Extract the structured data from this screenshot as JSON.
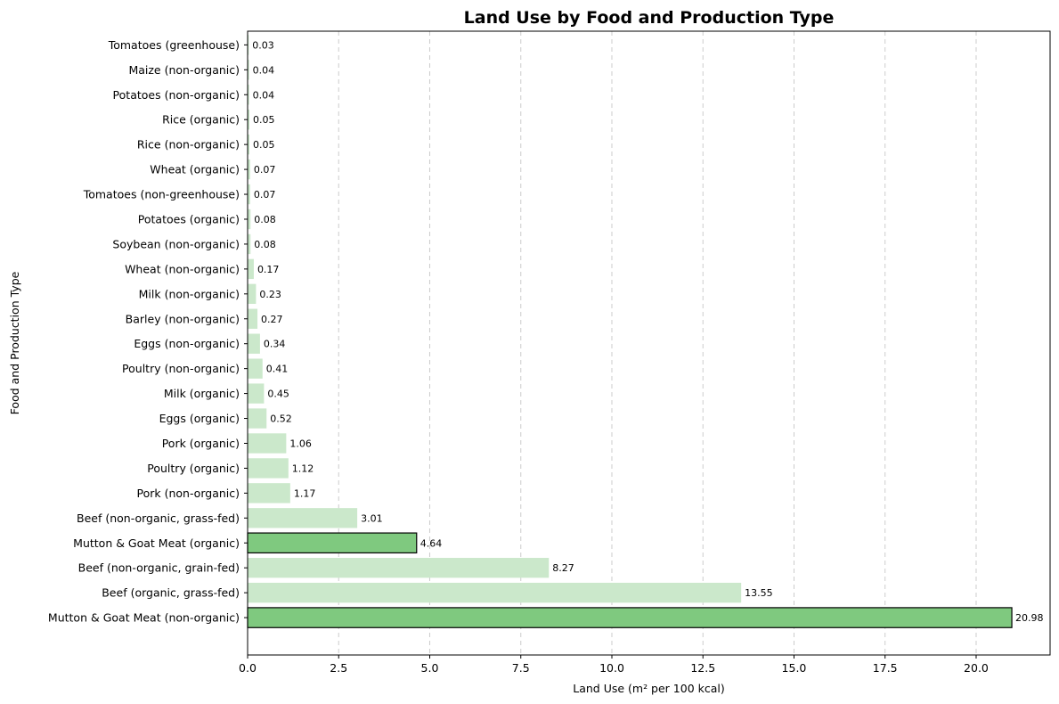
{
  "chart_data": {
    "type": "bar",
    "orientation": "horizontal",
    "title": "Land Use by Food and Production Type",
    "xlabel": "Land Use (m² per 100 kcal)",
    "ylabel": "Food and Production Type",
    "xlim": [
      0,
      22.03
    ],
    "xticks": [
      0.0,
      2.5,
      5.0,
      7.5,
      10.0,
      12.5,
      15.0,
      17.5,
      20.0
    ],
    "xtick_labels": [
      "0.0",
      "2.5",
      "5.0",
      "7.5",
      "10.0",
      "12.5",
      "15.0",
      "17.5",
      "20.0"
    ],
    "grid": "x-dashed",
    "categories": [
      "Mutton & Goat Meat (non-organic)",
      "Beef (organic, grass-fed)",
      "Beef (non-organic, grain-fed)",
      "Mutton & Goat Meat (organic)",
      "Beef (non-organic, grass-fed)",
      "Pork (non-organic)",
      "Poultry (organic)",
      "Pork (organic)",
      "Eggs (organic)",
      "Milk (organic)",
      "Poultry (non-organic)",
      "Eggs (non-organic)",
      "Barley (non-organic)",
      "Milk (non-organic)",
      "Wheat (non-organic)",
      "Soybean (non-organic)",
      "Potatoes (organic)",
      "Tomatoes (non-greenhouse)",
      "Wheat (organic)",
      "Rice (non-organic)",
      "Rice (organic)",
      "Potatoes (non-organic)",
      "Maize (non-organic)",
      "Tomatoes (greenhouse)"
    ],
    "values": [
      20.98,
      13.55,
      8.27,
      4.64,
      3.01,
      1.17,
      1.12,
      1.06,
      0.52,
      0.45,
      0.41,
      0.34,
      0.27,
      0.23,
      0.17,
      0.08,
      0.08,
      0.07,
      0.07,
      0.05,
      0.05,
      0.04,
      0.04,
      0.03
    ],
    "value_labels": [
      "20.98",
      "13.55",
      "8.27",
      "4.64",
      "3.01",
      "1.17",
      "1.12",
      "1.06",
      "0.52",
      "0.45",
      "0.41",
      "0.34",
      "0.27",
      "0.23",
      "0.17",
      "0.08",
      "0.08",
      "0.07",
      "0.07",
      "0.05",
      "0.05",
      "0.04",
      "0.04",
      "0.03"
    ],
    "highlighted": [
      true,
      false,
      false,
      true,
      false,
      false,
      false,
      false,
      false,
      false,
      false,
      false,
      false,
      false,
      false,
      false,
      false,
      false,
      false,
      false,
      false,
      false,
      false,
      false
    ],
    "colors": {
      "highlight_fill": "#7fc97f",
      "highlight_edge": "#000000",
      "default_fill": "#cbe8cb",
      "grid": "#cccccc",
      "axis": "#000000"
    }
  }
}
